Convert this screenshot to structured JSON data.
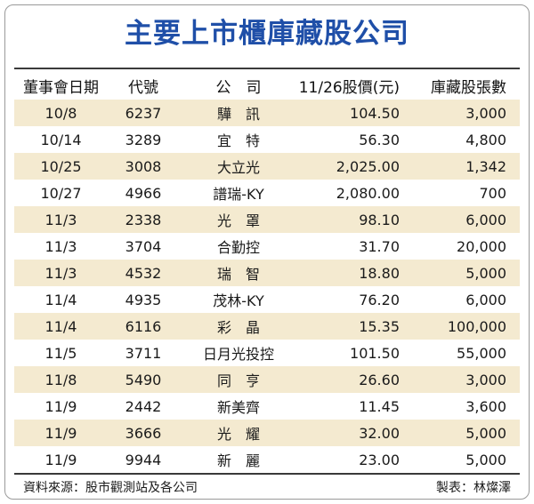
{
  "title": "主要上市櫃庫藏股公司",
  "headers": {
    "date": "董事會日期",
    "code": "代號",
    "name": "公　司",
    "price": "11/26股價(元)",
    "lots": "庫藏股張數"
  },
  "rows": [
    {
      "date": "10/8",
      "code": "6237",
      "name": "驊　訊",
      "price": "104.50",
      "lots": "3,000"
    },
    {
      "date": "10/14",
      "code": "3289",
      "name": "宜　特",
      "price": "56.30",
      "lots": "4,800"
    },
    {
      "date": "10/25",
      "code": "3008",
      "name": "大立光",
      "price": "2,025.00",
      "lots": "1,342"
    },
    {
      "date": "10/27",
      "code": "4966",
      "name": "譜瑞-KY",
      "price": "2,080.00",
      "lots": "700"
    },
    {
      "date": "11/3",
      "code": "2338",
      "name": "光　罩",
      "price": "98.10",
      "lots": "6,000"
    },
    {
      "date": "11/3",
      "code": "3704",
      "name": "合勤控",
      "price": "31.70",
      "lots": "20,000"
    },
    {
      "date": "11/3",
      "code": "4532",
      "name": "瑞　智",
      "price": "18.80",
      "lots": "5,000"
    },
    {
      "date": "11/4",
      "code": "4935",
      "name": "茂林-KY",
      "price": "76.20",
      "lots": "6,000"
    },
    {
      "date": "11/4",
      "code": "6116",
      "name": "彩　晶",
      "price": "15.35",
      "lots": "100,000"
    },
    {
      "date": "11/5",
      "code": "3711",
      "name": "日月光投控",
      "price": "101.50",
      "lots": "55,000"
    },
    {
      "date": "11/8",
      "code": "5490",
      "name": "同　亨",
      "price": "26.60",
      "lots": "3,000"
    },
    {
      "date": "11/9",
      "code": "2442",
      "name": "新美齊",
      "price": "11.45",
      "lots": "3,600"
    },
    {
      "date": "11/9",
      "code": "3666",
      "name": "光　耀",
      "price": "32.00",
      "lots": "5,000"
    },
    {
      "date": "11/9",
      "code": "9944",
      "name": "新　麗",
      "price": "23.00",
      "lots": "5,000"
    }
  ],
  "footer": {
    "source": "資料來源：股市觀測站及各公司",
    "author": "製表：林燦澤"
  },
  "colors": {
    "title": "#1f4fa8",
    "row_shade": "#f4ead0"
  }
}
